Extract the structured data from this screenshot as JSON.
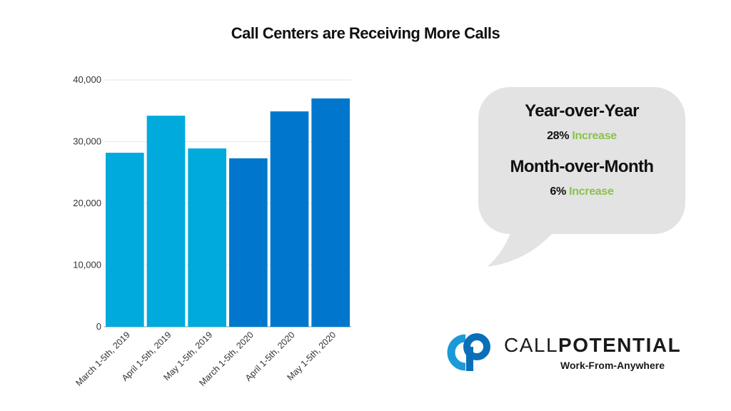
{
  "title": "Call Centers are Receiving More Calls",
  "chart_data": {
    "type": "bar",
    "title": "Call Centers are Receiving More Calls",
    "xlabel": "",
    "ylabel": "",
    "categories": [
      "March 1-5th, 2019",
      "April 1-5th, 2019",
      "May 1-5th, 2019",
      "March 1-5th, 2020",
      "April 1-5th, 2020",
      "May 1-5th, 2020"
    ],
    "values": [
      28200,
      34200,
      28900,
      27300,
      34900,
      37000
    ],
    "colors": [
      "#00aadd",
      "#00aadd",
      "#00aadd",
      "#0077cc",
      "#0077cc",
      "#0077cc"
    ],
    "ylim": [
      0,
      40000
    ],
    "yticks": [
      0,
      10000,
      20000,
      30000,
      40000
    ],
    "ytick_labels": [
      "0",
      "10,000",
      "20,000",
      "30,000",
      "40,000"
    ],
    "grid": true,
    "legend": "none"
  },
  "callout": {
    "yoy_title": "Year-over-Year",
    "yoy_value": "28%",
    "yoy_word": "Increase",
    "mom_title": "Month-over-Month",
    "mom_value": "6%",
    "mom_word": "Increase",
    "bubble_color": "#e3e3e3",
    "increase_color": "#8bc34a"
  },
  "logo": {
    "brand_light": "CALL",
    "brand_bold": "POTENTIAL",
    "tagline": "Work-From-Anywhere",
    "mark_color_left": "#1a9ad6",
    "mark_color_right": "#0a6fb8"
  }
}
